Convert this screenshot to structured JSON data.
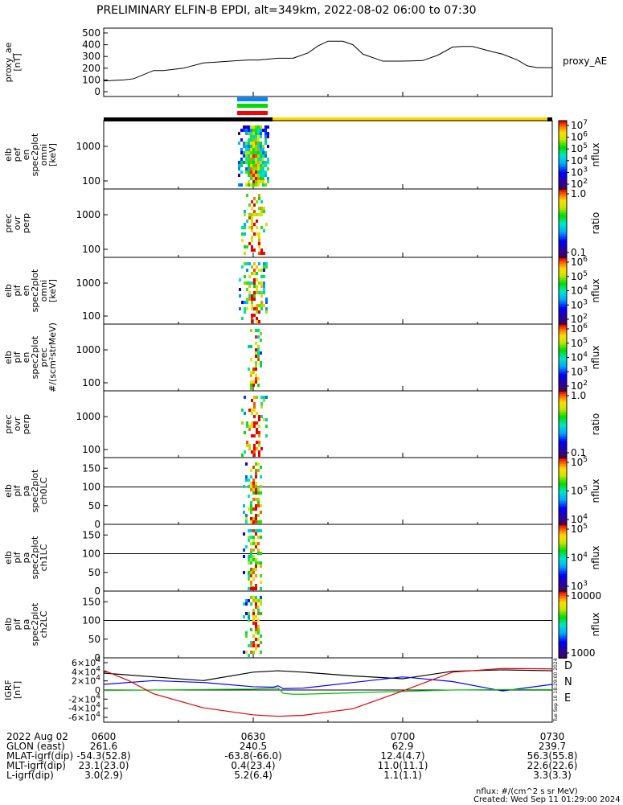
{
  "title": "PRELIMINARY ELFIN-B EPDI, alt=349km, 2022-08-02 06:00 to 07:30",
  "chart_data": [
    {
      "type": "line",
      "ylabel_lines": [
        "proxy_ae",
        "[nT]"
      ],
      "legend": "proxy_AE",
      "yticks": [
        "0",
        "100",
        "200",
        "300",
        "400",
        "500"
      ],
      "ylim": [
        0,
        520
      ],
      "xlim_minutes": [
        0,
        90
      ],
      "series": [
        {
          "name": "proxy_AE",
          "x": [
            0,
            4,
            6,
            10,
            12,
            16,
            20,
            22,
            26,
            29,
            31,
            35,
            38,
            41,
            43,
            45,
            48,
            50,
            52,
            56,
            60,
            64,
            67,
            70,
            72,
            74,
            78,
            80,
            83,
            85,
            87,
            90
          ],
          "values": [
            92,
            100,
            110,
            180,
            180,
            200,
            245,
            250,
            262,
            270,
            270,
            285,
            285,
            330,
            390,
            430,
            430,
            400,
            320,
            260,
            260,
            265,
            310,
            380,
            385,
            385,
            340,
            320,
            270,
            220,
            205,
            205
          ]
        }
      ]
    },
    {
      "type": "heatmap",
      "ylabel_lines": [
        "elb",
        "pef",
        "en",
        "spec2plot",
        "omni",
        "[keV]"
      ],
      "yticks": [
        "100",
        "1000"
      ],
      "colorbar": {
        "labels": [
          "10^2",
          "10^3",
          "10^4",
          "10^5",
          "10^6",
          "10^7"
        ],
        "unit": "nflux"
      }
    },
    {
      "type": "heatmap",
      "ylabel_lines": [
        "prec",
        "ovr",
        "perp"
      ],
      "yticks": [
        "100",
        "1000"
      ],
      "colorbar": {
        "labels": [
          "0.1",
          "1.0"
        ],
        "unit": "ratio"
      }
    },
    {
      "type": "heatmap",
      "ylabel_lines": [
        "elb",
        "pif",
        "en",
        "spec2plot",
        "omni",
        "[keV]"
      ],
      "yticks": [
        "100",
        "1000"
      ],
      "colorbar": {
        "labels": [
          "10^2",
          "10^3",
          "10^4",
          "10^5",
          "10^6"
        ],
        "unit": "nflux"
      }
    },
    {
      "type": "heatmap",
      "ylabel_lines": [
        "elb",
        "pif",
        "en",
        "spec2plot",
        "prec",
        "#/(scm²strMeV)"
      ],
      "yticks": [
        "100",
        "1000"
      ],
      "colorbar": {
        "labels": [
          "10^2",
          "10^3",
          "10^4",
          "10^5",
          "10^6"
        ],
        "unit": "nflux"
      }
    },
    {
      "type": "heatmap",
      "ylabel_lines": [
        "prec",
        "ovr",
        "perp"
      ],
      "yticks": [
        "100",
        "1000"
      ],
      "colorbar": {
        "labels": [
          "0.1",
          "1.0"
        ],
        "unit": "ratio"
      }
    },
    {
      "type": "heatmap",
      "ylabel_lines": [
        "elb",
        "pif",
        "pa",
        "spec2plot",
        "ch0LC"
      ],
      "yticks": [
        "0",
        "50",
        "100",
        "150"
      ],
      "colorbar": {
        "labels": [
          "10^4",
          "10^5",
          "10^5"
        ],
        "unit": "nflux"
      }
    },
    {
      "type": "heatmap",
      "ylabel_lines": [
        "elb",
        "pif",
        "pa",
        "spec2plot",
        "ch1LC"
      ],
      "yticks": [
        "0",
        "50",
        "100",
        "150"
      ],
      "colorbar": {
        "labels": [
          "10^3",
          "10^4",
          "10^5"
        ],
        "unit": "nflux"
      }
    },
    {
      "type": "heatmap",
      "ylabel_lines": [
        "elb",
        "pif",
        "pa",
        "spec2plot",
        "ch2LC"
      ],
      "yticks": [
        "0",
        "50",
        "100",
        "150"
      ],
      "colorbar": {
        "labels": [
          "1000",
          "10000"
        ],
        "unit": "nflux"
      }
    },
    {
      "type": "line",
      "ylabel_lines": [
        "IGRF",
        "[nT]"
      ],
      "yticks": [
        "-6×10^4",
        "-4×10^4",
        "-2×10^4",
        "0",
        "2×10^4",
        "4×10^4",
        "6×10^4"
      ],
      "ylim": [
        -60000,
        60000
      ],
      "xlim_minutes": [
        0,
        90
      ],
      "legend": [
        "D",
        "N",
        "E"
      ],
      "series": [
        {
          "name": "D",
          "color": "#000000",
          "x": [
            0,
            10,
            20,
            30,
            35,
            40,
            50,
            60,
            70,
            80,
            90
          ],
          "values": [
            36000,
            28000,
            20000,
            38000,
            41000,
            38000,
            30000,
            24000,
            40000,
            43000,
            41000
          ]
        },
        {
          "name": "N",
          "color": "#0000ff",
          "x": [
            0,
            10,
            20,
            30,
            34,
            35,
            36,
            40,
            50,
            60,
            70,
            80,
            90
          ],
          "values": [
            12000,
            20000,
            16000,
            7000,
            6000,
            9000,
            3000,
            4000,
            16000,
            28000,
            18000,
            -2000,
            12000
          ]
        },
        {
          "name": "E",
          "color": "#00c000",
          "x": [
            0,
            10,
            20,
            30,
            35,
            36,
            38,
            40,
            50,
            60,
            70,
            80,
            90
          ],
          "values": [
            -1000,
            0,
            1000,
            2000,
            4000,
            -7000,
            -9000,
            -9000,
            -6000,
            -3000,
            0,
            1000,
            1000
          ]
        },
        {
          "name": "D_red",
          "color": "#e00000",
          "x": [
            0,
            5,
            10,
            20,
            30,
            35,
            40,
            50,
            60,
            70,
            80,
            90
          ],
          "values": [
            42000,
            20000,
            -8000,
            -38000,
            -53000,
            -56000,
            -54000,
            -40000,
            -2000,
            38000,
            46000,
            45000
          ]
        }
      ]
    }
  ],
  "time_axis": {
    "ticks": [
      "0600",
      "0630",
      "0700",
      "0730"
    ],
    "rows": [
      {
        "label": "2022 Aug 02",
        "values": [
          "0600",
          "0630",
          "0700",
          "0730"
        ]
      },
      {
        "label": "GLON (east)",
        "values": [
          "261.6",
          "240.5",
          "62.9",
          "239.7"
        ]
      },
      {
        "label": "MLAT-igrf(dip)",
        "values": [
          "-54.3(52.8)",
          "-63.8(-66.0)",
          "12.4(4.7)",
          "56.3(55.8)"
        ]
      },
      {
        "label": "MLT-igrf(dip)",
        "values": [
          "23.1(23.0)",
          "0.4(23.4)",
          "11.0(11.1)",
          "22.6(22.6)"
        ]
      },
      {
        "label": "L-igrf(dip)",
        "values": [
          "3.0(2.9)",
          "5.2(6.4)",
          "1.1(1.1)",
          "3.3(3.3)"
        ]
      }
    ]
  },
  "footer": {
    "unit_note": "nflux: #/(cm^2 s sr MeV)",
    "created": "Created: Wed Sep 11 01:29:00 2024"
  },
  "side_stamp": "Tue Sep 10 18:29:00 2024"
}
